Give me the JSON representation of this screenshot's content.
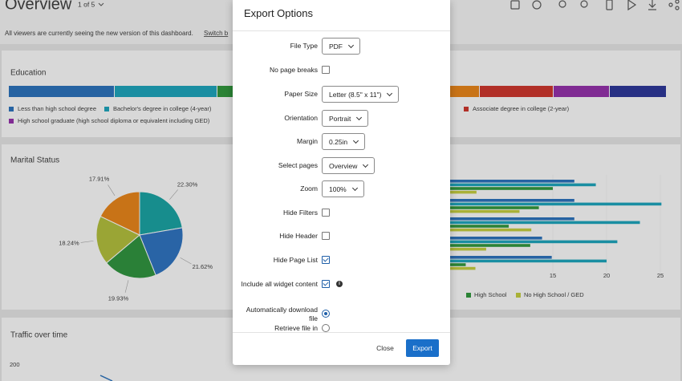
{
  "header": {
    "title": "Overview",
    "page_selector": "1 of 5"
  },
  "notice": {
    "text": "All viewers are currently seeing the new version of this dashboard.",
    "link": "Switch b"
  },
  "education": {
    "title": "Education",
    "legend": [
      "Less than high school degree",
      "Bachelor's degree in college (4-year)",
      "Associate degree in college (2-year)",
      "High school graduate (high school diploma or equivalent including GED)"
    ]
  },
  "marital_status": {
    "title": "Marital Status",
    "slices": [
      {
        "value": 22.3,
        "label": "22.30%",
        "color": "#1a9a9a"
      },
      {
        "value": 21.62,
        "label": "21.62%",
        "color": "#2d6db5"
      },
      {
        "value": 19.93,
        "label": "19.93%",
        "color": "#2e8b3c"
      },
      {
        "value": 18.24,
        "label": "18.24%",
        "color": "#a8b43a"
      },
      {
        "value": 17.91,
        "label": "17.91%",
        "color": "#d97d1a"
      }
    ]
  },
  "bar_chart": {
    "xlim": [
      0,
      25
    ],
    "xticks": [
      15,
      20,
      25
    ],
    "series": [
      {
        "name": null,
        "color": "#2a6cb0",
        "values": [
          17.0,
          17.0,
          17.0,
          14.0,
          14.9
        ]
      },
      {
        "name": null,
        "color": "#1d9bb0",
        "values": [
          19.0,
          25.1,
          23.1,
          21.0,
          20.0
        ]
      },
      {
        "name": "High School",
        "color": "#2f8f3a",
        "values": [
          15.0,
          13.7,
          10.9,
          12.9,
          6.9
        ]
      },
      {
        "name": "No High School / GED",
        "color": "#b8c03c",
        "values": [
          7.9,
          11.9,
          13.0,
          8.8,
          7.8
        ]
      }
    ]
  },
  "traffic": {
    "title": "Traffic over time",
    "ytick": 200
  },
  "export_options": {
    "title": "Export Options",
    "fields": [
      {
        "label": "File Type",
        "control": "select",
        "value": "PDF"
      },
      {
        "label": "No page breaks",
        "control": "checkbox",
        "checked": false
      },
      {
        "label": "Paper Size",
        "control": "select",
        "value": "Letter (8.5\" x 11\")"
      },
      {
        "label": "Orientation",
        "control": "select",
        "value": "Portrait"
      },
      {
        "label": "Margin",
        "control": "select",
        "value": "0.25in"
      },
      {
        "label": "Select pages",
        "control": "select",
        "value": "Overview"
      },
      {
        "label": "Zoom",
        "control": "select",
        "value": "100%"
      },
      {
        "label": "Hide Filters",
        "control": "checkbox",
        "checked": false
      },
      {
        "label": "Hide Header",
        "control": "checkbox",
        "checked": false
      },
      {
        "label": "Hide Page List",
        "control": "checkbox",
        "checked": true
      },
      {
        "label": "Include all widget content",
        "control": "checkbox",
        "checked": true,
        "info": true
      },
      {
        "label": "Automatically download file",
        "control": "radio",
        "checked": true
      },
      {
        "label": "Retrieve file in",
        "control": "radio",
        "checked": false
      }
    ],
    "close": "Close",
    "export": "Export"
  }
}
